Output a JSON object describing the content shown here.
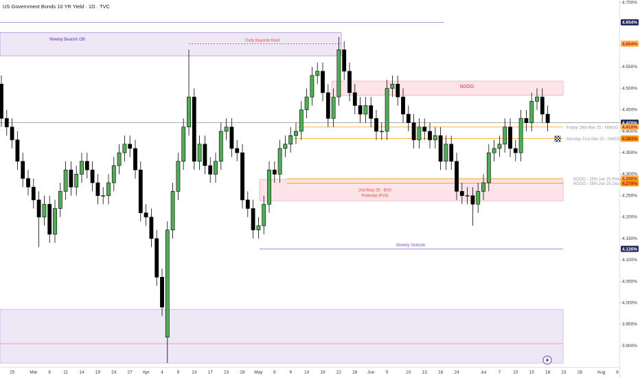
{
  "chart_data": {
    "type": "candlestick",
    "title": "US Government Bonds 10 YR Yield · 1D · TVC",
    "categories": [
      null,
      null,
      "25",
      null,
      null,
      null,
      "Mar",
      null,
      null,
      "6",
      null,
      null,
      "11",
      null,
      null,
      "14",
      null,
      null,
      "19",
      null,
      null,
      "24",
      null,
      null,
      "27",
      null,
      null,
      "Apr",
      null,
      null,
      "4",
      null,
      null,
      "9",
      null,
      null,
      "14",
      null,
      null,
      "17",
      null,
      null,
      "23",
      null,
      null,
      "28",
      null,
      null,
      "May",
      null,
      null,
      "6",
      null,
      null,
      "9",
      null,
      null,
      "14",
      null,
      null,
      "19",
      null,
      null,
      "22",
      null,
      null,
      "28",
      null,
      null,
      "Jun",
      null,
      null,
      "5",
      null,
      null,
      null,
      "10",
      null,
      null,
      "13",
      null,
      null,
      "18",
      null,
      null,
      "24",
      null,
      null,
      null,
      null,
      "Jul",
      null,
      null,
      "7",
      null,
      null,
      "10",
      null,
      null,
      "15",
      null,
      null,
      "18",
      null,
      null,
      "23",
      null,
      null,
      "28",
      null,
      null,
      null,
      "Aug",
      null,
      null,
      "6"
    ],
    "open": [
      4.51,
      4.43,
      4.41,
      4.38,
      4.33,
      4.29,
      4.27,
      4.24,
      4.2,
      4.23,
      4.16,
      4.22,
      4.26,
      4.31,
      4.27,
      4.3,
      4.33,
      4.31,
      4.28,
      4.25,
      4.25,
      4.28,
      4.32,
      4.35,
      4.37,
      4.36,
      4.31,
      4.21,
      4.2,
      4.15,
      4.06,
      3.92,
      4.17,
      4.26,
      4.33,
      4.41,
      4.48,
      4.33,
      4.37,
      4.32,
      4.3,
      4.33,
      4.4,
      4.41,
      4.36,
      4.35,
      4.24,
      4.22,
      4.17,
      4.18,
      4.23,
      4.31,
      4.3,
      4.36,
      4.37,
      4.39,
      4.4,
      4.45,
      4.48,
      4.53,
      4.54,
      4.49,
      4.43,
      4.48,
      4.59,
      4.54,
      4.49,
      4.46,
      4.44,
      4.46,
      4.43,
      4.4,
      4.4,
      4.5,
      4.51,
      4.48,
      4.44,
      4.42,
      4.38,
      4.41,
      4.4,
      4.38,
      4.39,
      4.33,
      4.37,
      4.33,
      4.26,
      4.25,
      4.25,
      4.23,
      4.26,
      4.28,
      4.35,
      4.36,
      4.37,
      4.41,
      4.36,
      4.35,
      4.43,
      4.42,
      4.47,
      4.48,
      4.44,
      null,
      null,
      null,
      null,
      null,
      null,
      null,
      null,
      null,
      null,
      null,
      null,
      null
    ],
    "high": [
      4.53,
      4.45,
      4.43,
      4.4,
      4.35,
      4.31,
      4.29,
      4.26,
      4.25,
      4.25,
      4.24,
      4.28,
      4.33,
      4.33,
      4.32,
      4.35,
      4.35,
      4.33,
      4.3,
      4.27,
      4.3,
      4.34,
      4.37,
      4.39,
      4.39,
      4.38,
      4.33,
      4.23,
      4.22,
      4.17,
      4.08,
      4.19,
      4.28,
      4.35,
      4.43,
      4.59,
      4.5,
      4.39,
      4.39,
      4.34,
      4.35,
      4.42,
      4.43,
      4.43,
      4.38,
      4.37,
      4.26,
      4.24,
      4.2,
      4.25,
      4.33,
      4.33,
      4.38,
      4.39,
      4.41,
      4.42,
      4.47,
      4.5,
      4.55,
      4.56,
      4.56,
      4.51,
      4.5,
      4.62,
      4.61,
      4.56,
      4.51,
      4.48,
      4.48,
      4.48,
      4.45,
      4.42,
      4.52,
      4.53,
      4.53,
      4.5,
      4.46,
      4.44,
      4.43,
      4.43,
      4.42,
      4.41,
      4.41,
      4.39,
      4.39,
      4.35,
      4.28,
      4.27,
      4.27,
      4.28,
      4.3,
      4.37,
      4.38,
      4.39,
      4.43,
      4.43,
      4.38,
      4.45,
      4.45,
      4.49,
      4.5,
      4.5,
      4.46,
      null,
      null,
      null,
      null,
      null,
      null,
      null,
      null,
      null,
      null,
      null,
      null,
      null
    ],
    "low": [
      4.41,
      4.39,
      4.36,
      4.31,
      4.27,
      4.25,
      4.22,
      4.13,
      4.18,
      4.14,
      4.14,
      4.2,
      4.24,
      4.25,
      4.25,
      4.28,
      4.29,
      4.26,
      4.23,
      4.23,
      4.23,
      4.26,
      4.3,
      4.33,
      4.34,
      4.29,
      4.19,
      4.18,
      4.13,
      4.04,
      3.97,
      3.86,
      4.15,
      4.24,
      4.31,
      4.39,
      4.31,
      4.31,
      4.3,
      4.28,
      4.28,
      4.31,
      4.38,
      4.34,
      4.33,
      4.22,
      4.2,
      4.15,
      4.15,
      4.16,
      4.21,
      4.28,
      4.28,
      4.34,
      4.35,
      4.37,
      4.38,
      4.43,
      4.46,
      4.51,
      4.47,
      4.41,
      4.41,
      4.46,
      4.52,
      4.47,
      4.44,
      4.42,
      4.42,
      4.41,
      4.38,
      4.38,
      4.38,
      4.48,
      4.46,
      4.42,
      4.4,
      4.36,
      4.36,
      4.38,
      4.36,
      4.36,
      4.31,
      4.31,
      4.31,
      4.24,
      4.23,
      4.23,
      4.18,
      4.21,
      4.24,
      4.26,
      4.33,
      4.34,
      4.35,
      4.34,
      4.33,
      4.33,
      4.4,
      4.4,
      4.45,
      4.42,
      4.4,
      null,
      null,
      null,
      null,
      null,
      null,
      null,
      null,
      null,
      null,
      null,
      null,
      null
    ],
    "close": [
      4.43,
      4.41,
      4.38,
      4.33,
      4.29,
      4.27,
      4.24,
      4.2,
      4.23,
      4.16,
      4.22,
      4.26,
      4.31,
      4.27,
      4.3,
      4.33,
      4.31,
      4.28,
      4.25,
      4.25,
      4.28,
      4.32,
      4.35,
      4.37,
      4.36,
      4.31,
      4.21,
      4.2,
      4.15,
      4.06,
      3.99,
      4.17,
      4.26,
      4.33,
      4.41,
      4.48,
      4.33,
      4.37,
      4.32,
      4.3,
      4.33,
      4.4,
      4.41,
      4.36,
      4.35,
      4.24,
      4.22,
      4.17,
      4.18,
      4.23,
      4.31,
      4.3,
      4.36,
      4.37,
      4.39,
      4.4,
      4.45,
      4.48,
      4.53,
      4.54,
      4.49,
      4.43,
      4.48,
      4.59,
      4.54,
      4.49,
      4.46,
      4.44,
      4.46,
      4.43,
      4.4,
      4.4,
      4.5,
      4.51,
      4.48,
      4.44,
      4.42,
      4.38,
      4.41,
      4.4,
      4.38,
      4.39,
      4.33,
      4.37,
      4.33,
      4.26,
      4.25,
      4.25,
      4.23,
      4.26,
      4.28,
      4.35,
      4.36,
      4.37,
      4.41,
      4.36,
      4.35,
      4.43,
      4.42,
      4.47,
      4.48,
      4.44,
      4.42,
      null,
      null,
      null,
      null,
      null,
      null,
      null,
      null,
      null,
      null,
      null,
      null,
      null
    ],
    "up_color": "#4caf50",
    "down_color": "#000000",
    "ylim": [
      3.825,
      4.706
    ],
    "yticks": [
      {
        "value": 3.9,
        "label": "3.900%"
      },
      {
        "value": 3.95,
        "label": "3.950%"
      },
      {
        "value": 4.0,
        "label": "4.000%"
      },
      {
        "value": 4.05,
        "label": "4.050%"
      },
      {
        "value": 4.1,
        "label": "4.100%"
      },
      {
        "value": 4.15,
        "label": "4.150%"
      },
      {
        "value": 4.2,
        "label": "4.200%"
      },
      {
        "value": 4.25,
        "label": "4.250%"
      },
      {
        "value": 4.3,
        "label": "4.300%"
      },
      {
        "value": 4.35,
        "label": "4.350%"
      },
      {
        "value": 4.4,
        "label": "4.400%"
      },
      {
        "value": 4.45,
        "label": "4.450%"
      },
      {
        "value": 4.5,
        "label": "4.500%"
      },
      {
        "value": 4.55,
        "label": "4.550%"
      },
      {
        "value": 4.6,
        "label": "4.600%"
      },
      {
        "value": 4.65,
        "label": "4.650%"
      },
      {
        "value": 4.7,
        "label": "4.700%"
      }
    ],
    "grid": false,
    "zones": [
      {
        "name": "Weekly Bearish OB",
        "range": [
          4.576,
          4.63
        ],
        "color": "#ede7f6",
        "border": "#9575cd",
        "text_color": "#5e35b1"
      },
      {
        "name": "NDOG",
        "range": [
          4.484,
          4.517
        ],
        "color": "#fde4ea",
        "border": "#ef9a9a",
        "text_color": "#e53935"
      },
      {
        "name": [
          "2nd May 25 - BISI",
          "Potential IFVG"
        ],
        "range": [
          4.238,
          4.288
        ],
        "color": "#fde4ea",
        "border": "#ef9a9a",
        "text_color": "#f4511e"
      },
      {
        "range": [
          3.86,
          3.985
        ],
        "color": "#ede7f6",
        "border": "#b39ddb"
      }
    ],
    "levels": [
      {
        "value": 4.654,
        "color": "#7986cb"
      },
      {
        "name": "Daily Buyside Raid",
        "value": 4.604,
        "color": "#ef5350",
        "dash": true
      },
      {
        "value": 4.42,
        "color": "#9e9e9e"
      },
      {
        "name": "Friday 28th Mar 25 - NWOG HIGH",
        "value": 4.41,
        "color": "#ffa726"
      },
      {
        "name": "Monday 31st Mar 25 - NWOG LOW",
        "value": 4.383,
        "color": "#ff9800"
      },
      {
        "name": "NDOG - 25th Jun 25 Premium",
        "value": 4.29,
        "color": "#ffb74d"
      },
      {
        "name": "NDOG - 26th Jun 25 Discount",
        "value": 4.279,
        "color": "#ff9800"
      },
      {
        "name": "Weekly Sellside",
        "value": 4.126,
        "color": "#7e57c2"
      },
      {
        "value": 3.905,
        "color": "#f48fb1"
      }
    ],
    "price_labels": [
      {
        "value": 4.654,
        "label": "4.654%",
        "color": "#262b5e"
      },
      {
        "value": 4.604,
        "label": "4.604%",
        "color": "#ffb74d"
      },
      {
        "value": 4.42,
        "label": "4.420%",
        "color": "#262b5e"
      },
      {
        "value": 4.41,
        "label": "4.410%",
        "color": "#ffb74d"
      },
      {
        "value": 4.383,
        "label": "4.383%",
        "color": "#ff9800"
      },
      {
        "value": 4.29,
        "label": "4.290%",
        "color": "#ffb74d"
      },
      {
        "value": 4.279,
        "label": "4.279%",
        "color": "#ff9800"
      },
      {
        "value": 4.126,
        "label": "4.126%",
        "color": "#262b5e"
      }
    ]
  }
}
